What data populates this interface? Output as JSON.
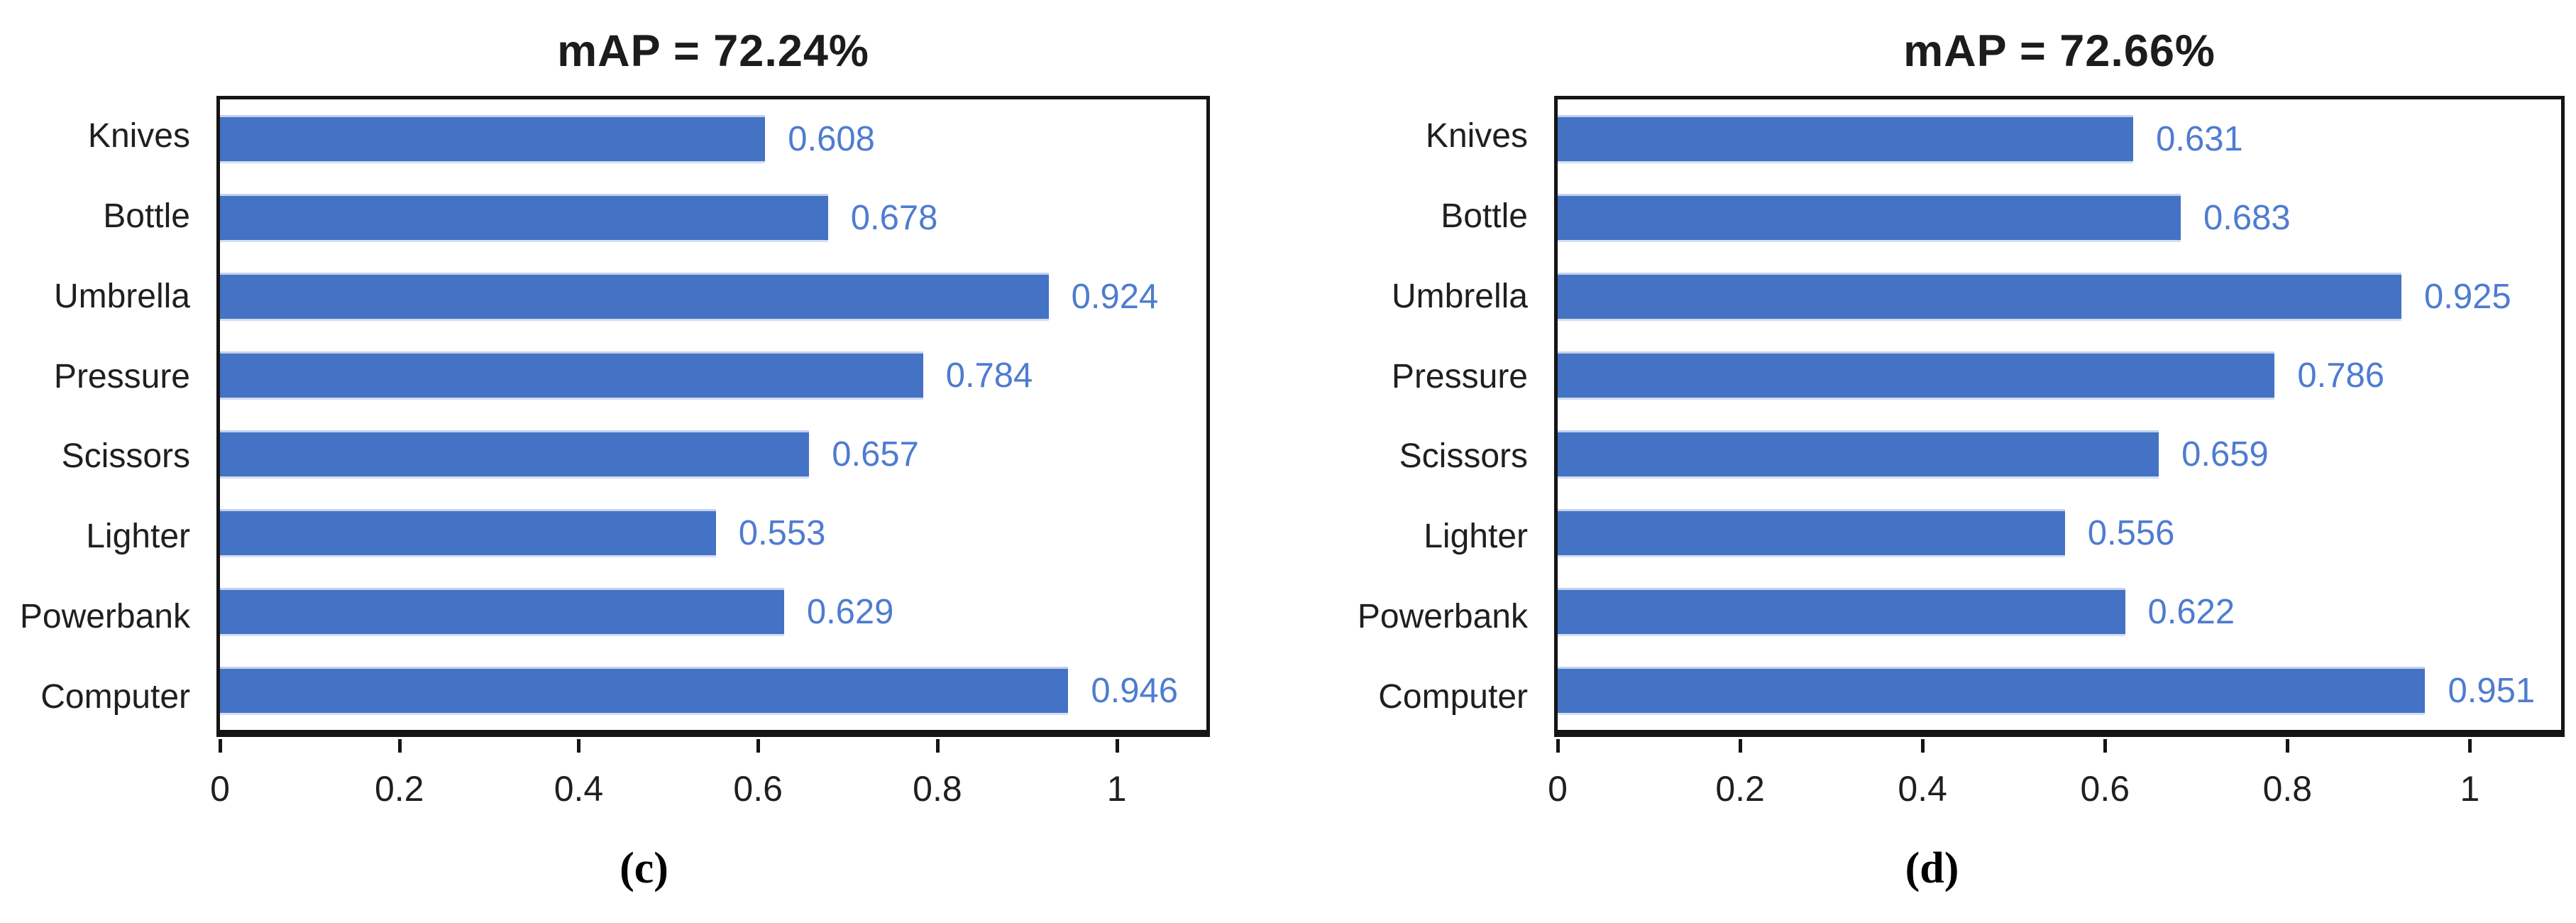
{
  "figure": {
    "type": "paper-figure-two-panel-bar-charts",
    "background": "#ffffff"
  },
  "colors": {
    "bar_fill": "#4472c4",
    "value_label": "#4e7cd0",
    "axis_and_border": "#151515",
    "text": "#1f1f1f"
  },
  "chart_data": [
    {
      "type": "bar",
      "orientation": "horizontal",
      "title": "mAP = 72.24%",
      "caption": "(c)",
      "mAP_percent": 72.24,
      "categories": [
        "Knives",
        "Bottle",
        "Umbrella",
        "Pressure",
        "Scissors",
        "Lighter",
        "Powerbank",
        "Computer"
      ],
      "values": [
        0.608,
        0.678,
        0.924,
        0.784,
        0.657,
        0.553,
        0.629,
        0.946
      ],
      "value_labels": [
        "0.608",
        "0.678",
        "0.924",
        "0.784",
        "0.657",
        "0.553",
        "0.629",
        "0.946"
      ],
      "xlim": [
        0,
        1.1
      ],
      "xticks": [
        0,
        0.2,
        0.4,
        0.6,
        0.8,
        1
      ],
      "xtick_labels": [
        "0",
        "0.2",
        "0.4",
        "0.6",
        "0.8",
        "1"
      ],
      "grid": false,
      "legend": null,
      "bar_color": "#4472c4",
      "value_label_color": "#4e7cd0"
    },
    {
      "type": "bar",
      "orientation": "horizontal",
      "title": "mAP = 72.66%",
      "caption": "(d)",
      "mAP_percent": 72.66,
      "categories": [
        "Knives",
        "Bottle",
        "Umbrella",
        "Pressure",
        "Scissors",
        "Lighter",
        "Powerbank",
        "Computer"
      ],
      "values": [
        0.631,
        0.683,
        0.925,
        0.786,
        0.659,
        0.556,
        0.622,
        0.951
      ],
      "value_labels": [
        "0.631",
        "0.683",
        "0.925",
        "0.786",
        "0.659",
        "0.556",
        "0.622",
        "0.951"
      ],
      "xlim": [
        0,
        1.1
      ],
      "xticks": [
        0,
        0.2,
        0.4,
        0.6,
        0.8,
        1
      ],
      "xtick_labels": [
        "0",
        "0.2",
        "0.4",
        "0.6",
        "0.8",
        "1"
      ],
      "grid": false,
      "legend": null,
      "bar_color": "#4472c4",
      "value_label_color": "#4e7cd0"
    }
  ]
}
